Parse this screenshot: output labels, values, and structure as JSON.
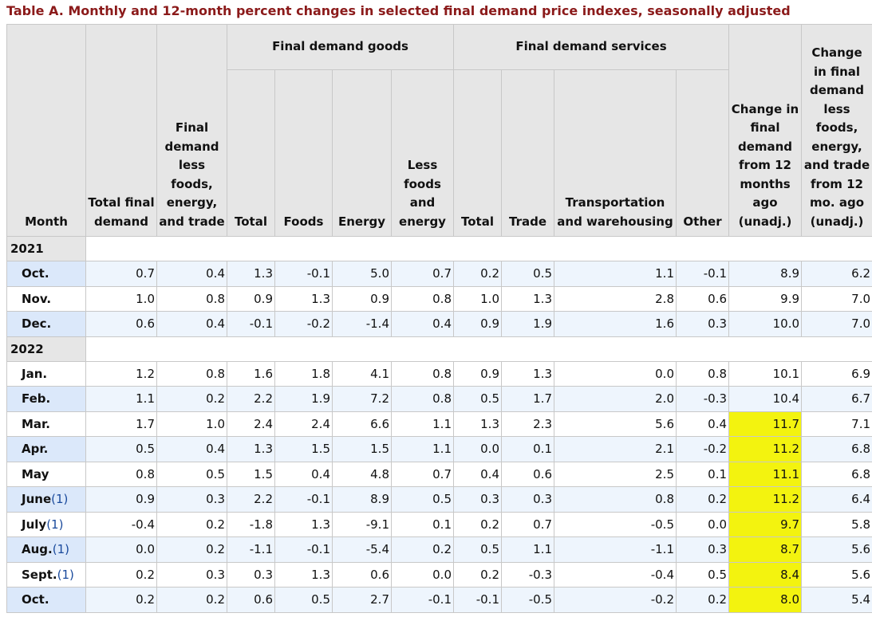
{
  "title": "Table A. Monthly and 12-month percent changes in selected final demand price indexes, seasonally adjusted",
  "header": {
    "month": "Month",
    "total_final_demand": "Total final demand",
    "fd_less": "Final demand less foods, energy, and trade",
    "goods_group": "Final demand goods",
    "goods_total": "Total",
    "goods_foods": "Foods",
    "goods_energy": "Energy",
    "goods_less": "Less foods and energy",
    "services_group": "Final demand services",
    "serv_total": "Total",
    "serv_trade": "Trade",
    "serv_transport": "Transportation and warehousing",
    "serv_other": "Other",
    "change_12m": "Change in final demand from 12 months ago (unadj.)",
    "change_less_12m": "Change in final demand less foods, energy, and trade from 12 mo. ago (unadj.)"
  },
  "years": [
    "2021",
    "2022"
  ],
  "rows": [
    {
      "month": "Oct.",
      "fn": "",
      "values": [
        "0.7",
        "0.4",
        "1.3",
        "-0.1",
        "5.0",
        "0.7",
        "0.2",
        "0.5",
        "1.1",
        "-0.1",
        "8.9",
        "6.2"
      ]
    },
    {
      "month": "Nov.",
      "fn": "",
      "values": [
        "1.0",
        "0.8",
        "0.9",
        "1.3",
        "0.9",
        "0.8",
        "1.0",
        "1.3",
        "2.8",
        "0.6",
        "9.9",
        "7.0"
      ]
    },
    {
      "month": "Dec.",
      "fn": "",
      "values": [
        "0.6",
        "0.4",
        "-0.1",
        "-0.2",
        "-1.4",
        "0.4",
        "0.9",
        "1.9",
        "1.6",
        "0.3",
        "10.0",
        "7.0"
      ]
    },
    {
      "month": "Jan.",
      "fn": "",
      "values": [
        "1.2",
        "0.8",
        "1.6",
        "1.8",
        "4.1",
        "0.8",
        "0.9",
        "1.3",
        "0.0",
        "0.8",
        "10.1",
        "6.9"
      ]
    },
    {
      "month": "Feb.",
      "fn": "",
      "values": [
        "1.1",
        "0.2",
        "2.2",
        "1.9",
        "7.2",
        "0.8",
        "0.5",
        "1.7",
        "2.0",
        "-0.3",
        "10.4",
        "6.7"
      ]
    },
    {
      "month": "Mar.",
      "fn": "",
      "values": [
        "1.7",
        "1.0",
        "2.4",
        "2.4",
        "6.6",
        "1.1",
        "1.3",
        "2.3",
        "5.6",
        "0.4",
        "11.7",
        "7.1"
      ]
    },
    {
      "month": "Apr.",
      "fn": "",
      "values": [
        "0.5",
        "0.4",
        "1.3",
        "1.5",
        "1.5",
        "1.1",
        "0.0",
        "0.1",
        "2.1",
        "-0.2",
        "11.2",
        "6.8"
      ]
    },
    {
      "month": "May",
      "fn": "",
      "values": [
        "0.8",
        "0.5",
        "1.5",
        "0.4",
        "4.8",
        "0.7",
        "0.4",
        "0.6",
        "2.5",
        "0.1",
        "11.1",
        "6.8"
      ]
    },
    {
      "month": "June",
      "fn": "(1)",
      "values": [
        "0.9",
        "0.3",
        "2.2",
        "-0.1",
        "8.9",
        "0.5",
        "0.3",
        "0.3",
        "0.8",
        "0.2",
        "11.2",
        "6.4"
      ]
    },
    {
      "month": "July",
      "fn": "(1)",
      "values": [
        "-0.4",
        "0.2",
        "-1.8",
        "1.3",
        "-9.1",
        "0.1",
        "0.2",
        "0.7",
        "-0.5",
        "0.0",
        "9.7",
        "5.8"
      ]
    },
    {
      "month": "Aug.",
      "fn": "(1)",
      "values": [
        "0.0",
        "0.2",
        "-1.1",
        "-0.1",
        "-5.4",
        "0.2",
        "0.5",
        "1.1",
        "-1.1",
        "0.3",
        "8.7",
        "5.6"
      ]
    },
    {
      "month": "Sept.",
      "fn": "(1)",
      "values": [
        "0.2",
        "0.3",
        "0.3",
        "1.3",
        "0.6",
        "0.0",
        "0.2",
        "-0.3",
        "-0.4",
        "0.5",
        "8.4",
        "5.6"
      ]
    },
    {
      "month": "Oct.",
      "fn": "",
      "values": [
        "0.2",
        "0.2",
        "0.6",
        "0.5",
        "2.7",
        "-0.1",
        "-0.1",
        "-0.5",
        "-0.2",
        "0.2",
        "8.0",
        "5.4"
      ]
    }
  ],
  "highlight_color": "#f3f30f"
}
